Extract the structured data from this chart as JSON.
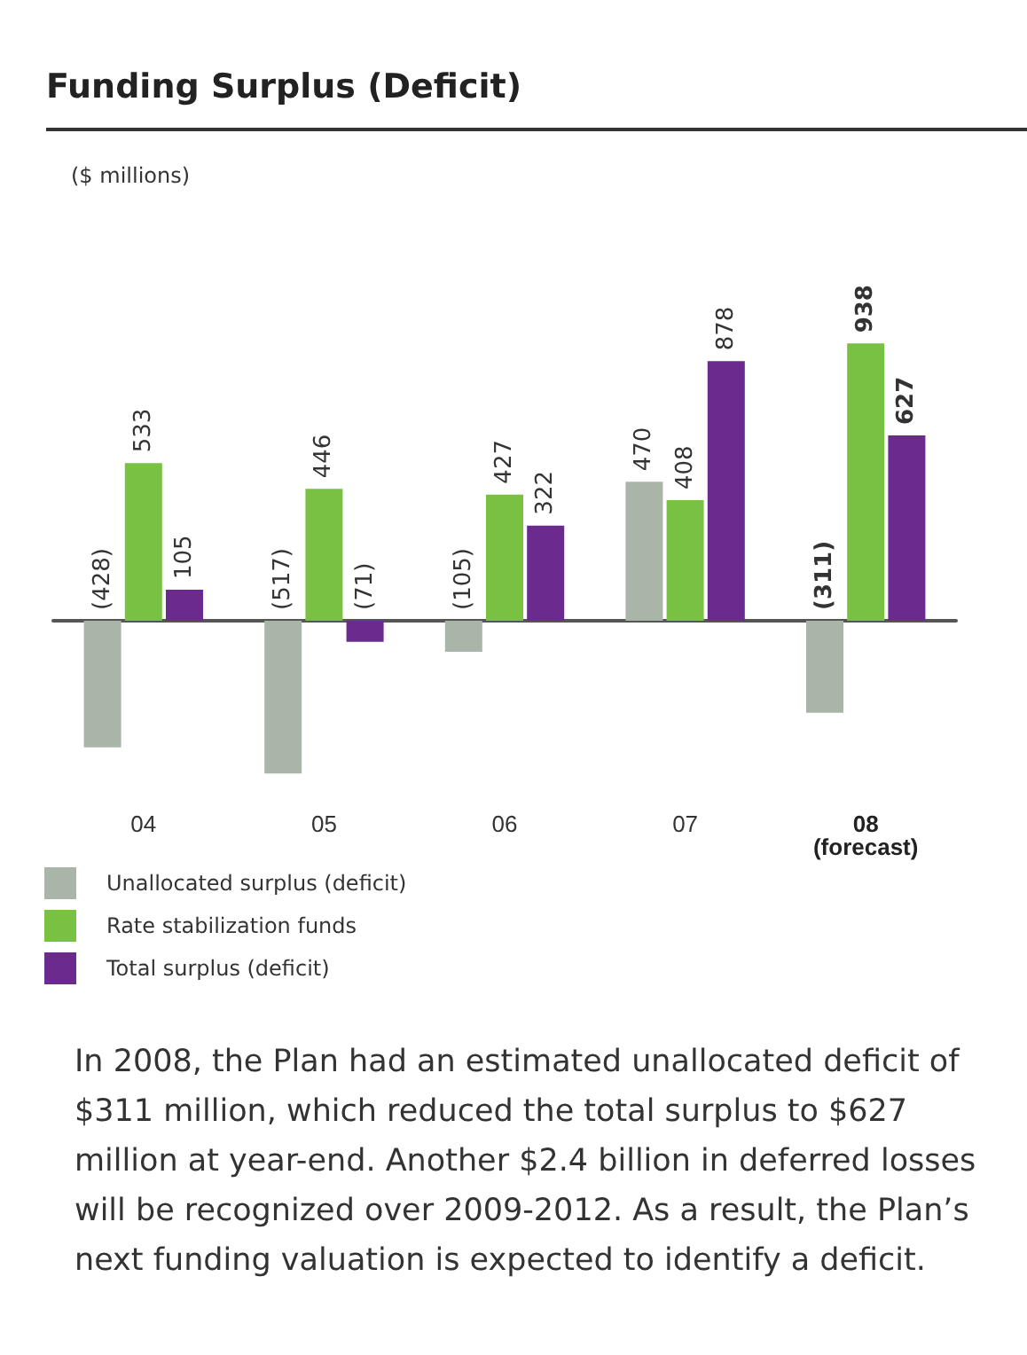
{
  "chart_data": {
    "type": "bar",
    "title": "Funding Surplus (Deficit)",
    "categories": [
      "04",
      "05",
      "06",
      "07",
      "08\n(forecast)"
    ],
    "series": [
      {
        "name": "Unallocated surplus (deficit)",
        "color": "#aab5a9",
        "values": [
          -428,
          -517,
          -105,
          470,
          -311
        ],
        "value_labels": [
          "(428)",
          "(517)",
          "(105)",
          "470",
          "(311)"
        ]
      },
      {
        "name": "Rate stabilization funds",
        "color": "#79c143",
        "values": [
          533,
          446,
          427,
          408,
          938
        ],
        "value_labels": [
          "533",
          "446",
          "427",
          "408",
          "938"
        ]
      },
      {
        "name": "Total surplus (deficit)",
        "color": "#6a2a8e",
        "values": [
          105,
          -71,
          322,
          878,
          627
        ],
        "value_labels": [
          "105",
          "(71)",
          "322",
          "878",
          "627"
        ]
      }
    ],
    "legend": "bottom left",
    "annotations": [
      "($ millions)",
      "In 2008, the Plan had an estimated unallocated deficit of $311 million, which reduced the total surplus to $627 million at year-end. Another $2.4 billion in deferred losses will be recognized over 2009-2012. As a result, the Plan’s next funding valuation is expected to identify a deficit."
    ]
  }
}
